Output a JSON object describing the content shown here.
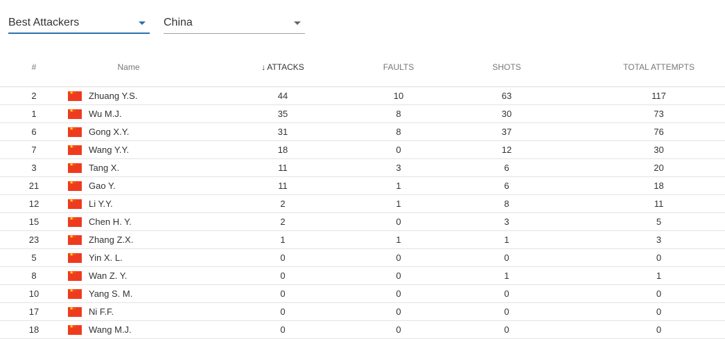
{
  "filters": {
    "stat": "Best Attackers",
    "team": "China"
  },
  "columns": {
    "number": "#",
    "name": "Name",
    "attacks": "ATTACKS",
    "faults": "FAULTS",
    "shots": "SHOTS",
    "total": "TOTAL ATTEMPTS"
  },
  "sort": {
    "column": "attacks",
    "direction": "desc",
    "arrow": "↓"
  },
  "flag_icon": "china-flag-icon",
  "colors": {
    "accent": "#2b6fb0",
    "flag_red": "#ee3b20",
    "flag_star": "#ffde00"
  },
  "rows": [
    {
      "number": "2",
      "name": "Zhuang Y.S.",
      "attacks": "44",
      "faults": "10",
      "shots": "63",
      "total": "117"
    },
    {
      "number": "1",
      "name": "Wu M.J.",
      "attacks": "35",
      "faults": "8",
      "shots": "30",
      "total": "73"
    },
    {
      "number": "6",
      "name": "Gong X.Y.",
      "attacks": "31",
      "faults": "8",
      "shots": "37",
      "total": "76"
    },
    {
      "number": "7",
      "name": "Wang Y.Y.",
      "attacks": "18",
      "faults": "0",
      "shots": "12",
      "total": "30"
    },
    {
      "number": "3",
      "name": "Tang X.",
      "attacks": "11",
      "faults": "3",
      "shots": "6",
      "total": "20"
    },
    {
      "number": "21",
      "name": "Gao Y.",
      "attacks": "11",
      "faults": "1",
      "shots": "6",
      "total": "18"
    },
    {
      "number": "12",
      "name": "Li Y.Y.",
      "attacks": "2",
      "faults": "1",
      "shots": "8",
      "total": "11"
    },
    {
      "number": "15",
      "name": "Chen H. Y.",
      "attacks": "2",
      "faults": "0",
      "shots": "3",
      "total": "5"
    },
    {
      "number": "23",
      "name": "Zhang Z.X.",
      "attacks": "1",
      "faults": "1",
      "shots": "1",
      "total": "3"
    },
    {
      "number": "5",
      "name": "Yin X. L.",
      "attacks": "0",
      "faults": "0",
      "shots": "0",
      "total": "0"
    },
    {
      "number": "8",
      "name": "Wan Z. Y.",
      "attacks": "0",
      "faults": "0",
      "shots": "1",
      "total": "1"
    },
    {
      "number": "10",
      "name": "Yang S. M.",
      "attacks": "0",
      "faults": "0",
      "shots": "0",
      "total": "0"
    },
    {
      "number": "17",
      "name": "Ni F.F.",
      "attacks": "0",
      "faults": "0",
      "shots": "0",
      "total": "0"
    },
    {
      "number": "18",
      "name": "Wang M.J.",
      "attacks": "0",
      "faults": "0",
      "shots": "0",
      "total": "0"
    }
  ]
}
